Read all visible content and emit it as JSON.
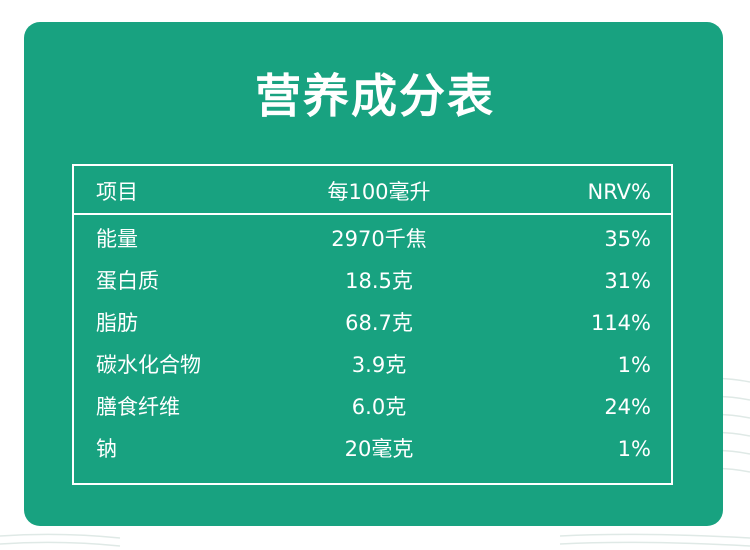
{
  "title": "营养成分表",
  "table": {
    "header": {
      "item": "项目",
      "per": "每100毫升",
      "nrv": "NRV%"
    },
    "rows": [
      {
        "item": "能量",
        "per": "2970千焦",
        "nrv": "35%"
      },
      {
        "item": "蛋白质",
        "per": "18.5克",
        "nrv": "31%"
      },
      {
        "item": "脂肪",
        "per": "68.7克",
        "nrv": "114%"
      },
      {
        "item": "碳水化合物",
        "per": "3.9克",
        "nrv": "1%"
      },
      {
        "item": "膳食纤维",
        "per": "6.0克",
        "nrv": "24%"
      },
      {
        "item": "钠",
        "per": "20毫克",
        "nrv": "1%"
      }
    ]
  },
  "colors": {
    "card_background": "#18a280",
    "text": "#ffffff",
    "page_background": "#ffffff"
  }
}
